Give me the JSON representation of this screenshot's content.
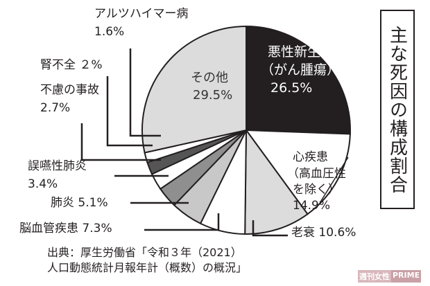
{
  "chart_data": {
    "type": "pie",
    "title": "主な死因の構成割合",
    "start": "12 o'clock, clockwise",
    "slices": [
      {
        "label": "悪性新生物（がん腫瘍）",
        "value": 26.5,
        "color": "#231f20"
      },
      {
        "label": "心疾患（高血圧性を除く）",
        "value": 14.9,
        "color": "#ffffff"
      },
      {
        "label": "老衰",
        "value": 10.6,
        "color": "#dcdcdc"
      },
      {
        "label": "脳血管疾患",
        "value": 7.3,
        "color": "#ffffff"
      },
      {
        "label": "肺炎",
        "value": 5.1,
        "color": "#c8c8c8"
      },
      {
        "label": "誤嚥性肺炎",
        "value": 3.4,
        "color": "#8f8f8f"
      },
      {
        "label": "不慮の事故",
        "value": 2.7,
        "color": "#ffffff"
      },
      {
        "label": "腎不全",
        "value": 2,
        "color": "#555555"
      },
      {
        "label": "アルツハイマー病",
        "value": 1.6,
        "color": "#ffffff"
      },
      {
        "label": "その他",
        "value": 29.5,
        "color": "#dcdcdc"
      }
    ],
    "labels": {
      "cancer": [
        "悪性新生物",
        "（がん腫瘍）",
        "26.5%"
      ],
      "heart": [
        "心疾患",
        "（高血圧性",
        "を除く）",
        "14.9%"
      ],
      "senility": "老衰 10.6%",
      "stroke": "脳血管疾患 7.3%",
      "pneumonia": "肺炎 5.1%",
      "aspiration": [
        "誤嚥性肺炎",
        "3.4%"
      ],
      "accident": [
        "不慮の事故",
        "2.7%"
      ],
      "kidney": "腎不全 ２%",
      "alzheimer": [
        "アルツハイマー病",
        "1.6%"
      ],
      "other": [
        "その他",
        "29.5%"
      ]
    }
  },
  "source": [
    "出典：厚生労働省「令和３年（2021）",
    "人口動態統計月報年計（概数）の概況」"
  ],
  "logo": [
    "週刊女性",
    "PRIME"
  ]
}
